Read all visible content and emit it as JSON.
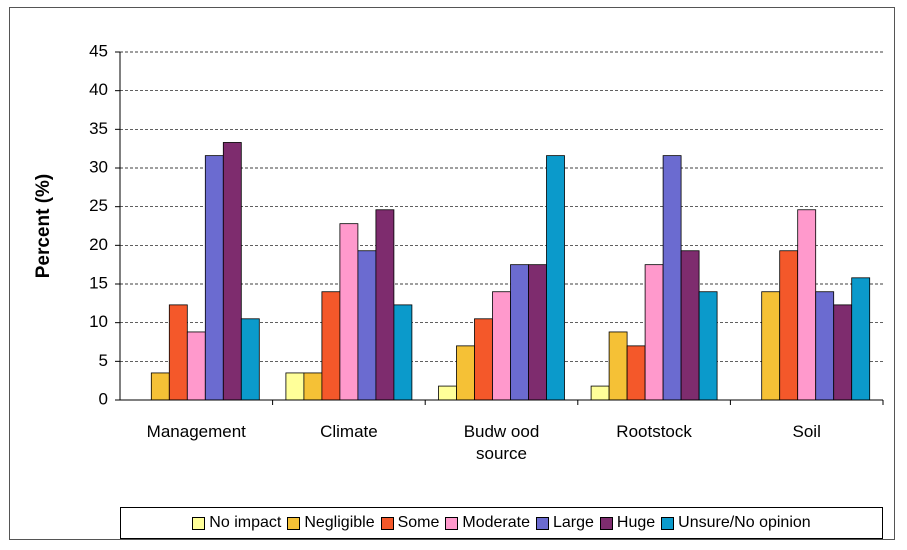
{
  "chart_data": {
    "type": "bar",
    "y_label": "Percent (%)",
    "categories": [
      "Management",
      "Climate",
      "Budw ood\nsource",
      "Rootstock",
      "Soil"
    ],
    "series": [
      {
        "name": "No impact",
        "color": "#ffff99",
        "values": [
          0,
          3.5,
          1.8,
          1.8,
          0
        ]
      },
      {
        "name": "Negligible",
        "color": "#f5c136",
        "values": [
          3.5,
          3.5,
          7.0,
          8.8,
          14.0
        ]
      },
      {
        "name": "Some",
        "color": "#f4582a",
        "values": [
          12.3,
          14.0,
          10.5,
          7.0,
          19.3
        ]
      },
      {
        "name": "Moderate",
        "color": "#ff99cc",
        "values": [
          8.8,
          22.8,
          14.0,
          17.5,
          24.6
        ]
      },
      {
        "name": "Large",
        "color": "#6b6bd0",
        "values": [
          31.6,
          19.3,
          17.5,
          31.6,
          14.0
        ]
      },
      {
        "name": "Huge",
        "color": "#7e2c6e",
        "values": [
          33.3,
          24.6,
          17.5,
          19.3,
          12.3
        ]
      },
      {
        "name": "Unsure/No opinion",
        "color": "#0b9acb",
        "values": [
          10.5,
          12.3,
          31.6,
          14.0,
          15.8
        ]
      }
    ],
    "ylim": [
      0,
      45
    ],
    "yticks": [
      0,
      5,
      10,
      15,
      20,
      25,
      30,
      35,
      40,
      45
    ],
    "grid": true,
    "legend": "bottom"
  }
}
